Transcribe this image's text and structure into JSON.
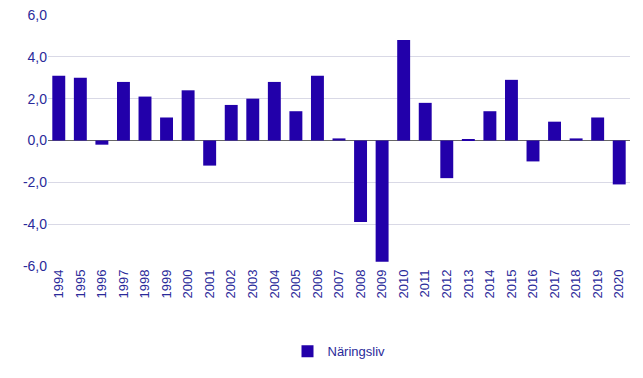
{
  "chart_data": {
    "type": "bar",
    "categories": [
      "1994",
      "1995",
      "1996",
      "1997",
      "1998",
      "1999",
      "2000",
      "2001",
      "2002",
      "2003",
      "2004",
      "2005",
      "2006",
      "2007",
      "2008",
      "2009",
      "2010",
      "2011",
      "2012",
      "2013",
      "2014",
      "2015",
      "2016",
      "2017",
      "2018",
      "2019",
      "2020"
    ],
    "series": [
      {
        "name": "Näringsliv",
        "color": "#2200aa",
        "values": [
          3.1,
          3.0,
          -0.2,
          2.8,
          2.1,
          1.1,
          2.4,
          -1.2,
          1.7,
          2.0,
          2.8,
          1.4,
          3.1,
          0.1,
          -3.9,
          -5.8,
          4.8,
          1.8,
          -1.8,
          0.05,
          1.4,
          2.9,
          -1.0,
          0.9,
          0.1,
          1.1,
          -2.1
        ]
      }
    ],
    "ylim": [
      -6,
      6
    ],
    "yticks": [
      {
        "value": -6,
        "label": "-6,0"
      },
      {
        "value": -4,
        "label": "-4,0"
      },
      {
        "value": -2,
        "label": "-2,0"
      },
      {
        "value": 0,
        "label": "0,0"
      },
      {
        "value": 2,
        "label": "2,0"
      },
      {
        "value": 4,
        "label": "4,0"
      },
      {
        "value": 6,
        "label": "6,0"
      }
    ],
    "grid": true,
    "legend": "bottom"
  }
}
